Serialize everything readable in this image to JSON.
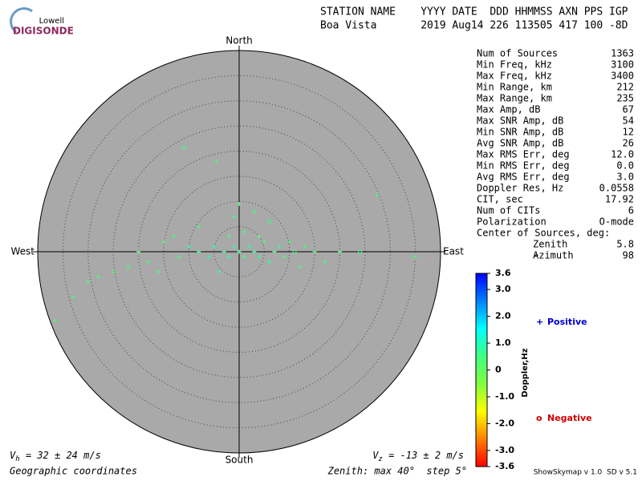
{
  "logo": {
    "top": "Lowell",
    "bottom": "DIGISONDE"
  },
  "header": {
    "columns": "STATION NAME    YYYY DATE  DDD HHMMSS AXN PPS IGP",
    "values": "Boa Vista       2019 Aug14 226 113505 417 100 -8D"
  },
  "stats": [
    [
      "Num of Sources",
      "1363"
    ],
    [
      "Min Freq, kHz",
      "3100"
    ],
    [
      "Max Freq, kHz",
      "3400"
    ],
    [
      "Min Range, km",
      "212"
    ],
    [
      "Max Range, km",
      "235"
    ],
    [
      "Max Amp, dB",
      "67"
    ],
    [
      "Max SNR Amp, dB",
      "54"
    ],
    [
      "Min SNR Amp, dB",
      "12"
    ],
    [
      "Avg SNR Amp, dB",
      "26"
    ],
    [
      "Max RMS Err, deg",
      "12.0"
    ],
    [
      "Min RMS Err, deg",
      "0.0"
    ],
    [
      "Avg RMS Err, deg",
      "3.0"
    ],
    [
      "Doppler Res, Hz",
      "0.0558"
    ],
    [
      "CIT, sec",
      "17.92"
    ],
    [
      "Num of CITs",
      "6"
    ],
    [
      "Polarization",
      "O-mode"
    ]
  ],
  "center": {
    "title": "Center of Sources, deg:",
    "rows": [
      [
        "Zenith",
        "5.8"
      ],
      [
        "Azimuth",
        "98"
      ]
    ]
  },
  "footer": {
    "vh": {
      "symbol": "V",
      "sub": "h",
      "text": " = 32 ± 24 m/s"
    },
    "vz": {
      "symbol": "V",
      "sub": "z",
      "text": " = -13 ± 2 m/s"
    },
    "coords": "Geographic coordinates",
    "zenith": "Zenith: max 40°  step 5°",
    "version": "ShowSkymap v 1.0  SD v 5.1"
  },
  "chart_data": {
    "type": "scatter",
    "directions": {
      "north": "North",
      "south": "South",
      "east": "East",
      "west": "West"
    },
    "zenith_max": 40,
    "zenith_step": 5,
    "background": "#a9a9a9",
    "x": [
      -36.6,
      35,
      27.4,
      -11,
      -4.5,
      0,
      -1,
      3,
      6,
      -8,
      -13,
      -15,
      -20,
      -25,
      -28,
      -30,
      -33,
      -22,
      -18,
      -16,
      -12,
      -10,
      -8,
      -6,
      -5,
      -3,
      -2,
      -1,
      0,
      1,
      2,
      3,
      4,
      5,
      6,
      7,
      8,
      9,
      10,
      11,
      12,
      13,
      15,
      17,
      20,
      24,
      -4,
      -2,
      1,
      4
    ],
    "y": [
      -13.7,
      -1,
      11.3,
      20.7,
      18,
      9.5,
      7,
      8,
      6,
      5,
      3,
      2,
      0,
      -4,
      -5,
      -6,
      -9,
      -3,
      -2,
      -4,
      -1,
      1,
      0,
      -1,
      1,
      0,
      -1,
      1,
      0,
      -1,
      1,
      0,
      -1,
      2,
      -2,
      0,
      1,
      -1,
      2,
      0,
      -3,
      1,
      0,
      -2,
      0,
      0,
      -4,
      3,
      4,
      3
    ],
    "doppler": [
      0.3,
      0.4,
      0.6,
      0.5,
      0.5,
      0.4,
      0.6,
      0.3,
      0.5,
      0.4,
      0.5,
      0.6,
      0.4,
      0.3,
      0.5,
      0.4,
      0.6,
      0.5,
      0.4,
      0.5,
      0.6,
      0.8,
      0.7,
      0.9,
      0.8,
      0.6,
      0.9,
      0.7,
      0.8,
      0.6,
      0.9,
      0.7,
      0.8,
      0.5,
      0.7,
      0.6,
      0.8,
      0.5,
      0.4,
      0.6,
      0.5,
      0.3,
      0.4,
      0.5,
      0.6,
      0.4,
      0.7,
      0.5,
      0.4,
      0.3
    ],
    "marker": [
      "+",
      "+",
      "+",
      "o",
      "+",
      "+",
      "+",
      "+",
      "o",
      "+",
      "+",
      "+",
      "+",
      "+",
      "+",
      "+",
      "+",
      "+",
      "+",
      "+",
      "+",
      "+",
      "+",
      "+",
      "+",
      "+",
      "+",
      "+",
      "+",
      "+",
      "+",
      "+",
      "+",
      "+",
      "+",
      "+",
      "+",
      "+",
      "+",
      "o",
      "+",
      "+",
      "+",
      "+",
      "+",
      "o",
      "+",
      "+",
      "+",
      "+"
    ],
    "colorbar": {
      "label": "Doppler,Hz",
      "lim": [
        -3.6,
        3.6
      ],
      "ticks": [
        3.6,
        {
          "value": 3,
          "label": "3.0"
        },
        {
          "value": 2,
          "label": "2.0"
        },
        {
          "value": 1,
          "label": "1.0"
        },
        0,
        {
          "value": -1,
          "label": "-1.0"
        },
        {
          "value": -2,
          "label": "-2.0"
        },
        {
          "value": -3,
          "label": "-3.0"
        },
        -3.6
      ],
      "colormap": [
        "#ff0000",
        "#ff8000",
        "#ffff00",
        "#80ff40",
        "#40ff80",
        "#00ffff",
        "#0080ff",
        "#0000ff"
      ]
    },
    "legend": [
      {
        "symbol": "+",
        "name": "Positive",
        "color": "#0000cc"
      },
      {
        "symbol": "o",
        "name": "Negative",
        "color": "#cc0000"
      }
    ]
  }
}
